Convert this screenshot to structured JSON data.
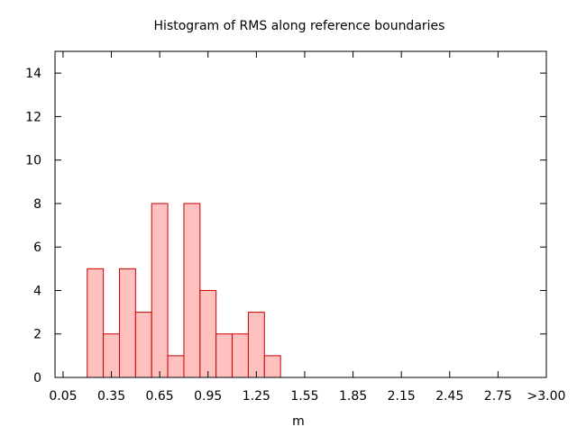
{
  "chart_data": {
    "type": "bar",
    "title": "Histogram of RMS along reference boundaries",
    "xlabel": "m",
    "ylabel": "",
    "xlim": [
      0.0,
      3.05
    ],
    "ylim": [
      0,
      15
    ],
    "bin_width": 0.1,
    "x_ticks": [
      "0.05",
      "0.35",
      "0.65",
      "0.95",
      "1.25",
      "1.55",
      "1.85",
      "2.15",
      "2.45",
      "2.75",
      ">3.00"
    ],
    "y_ticks": [
      "0",
      "2",
      "4",
      "6",
      "8",
      "10",
      "12",
      "14"
    ],
    "categories": [
      "0.25",
      "0.35",
      "0.45",
      "0.55",
      "0.65",
      "0.75",
      "0.85",
      "0.95",
      "1.05",
      "1.15",
      "1.25",
      "1.35"
    ],
    "x": [
      0.25,
      0.35,
      0.45,
      0.55,
      0.65,
      0.75,
      0.85,
      0.95,
      1.05,
      1.15,
      1.25,
      1.35
    ],
    "values": [
      5,
      2,
      5,
      3,
      8,
      1,
      8,
      4,
      2,
      2,
      3,
      1
    ],
    "grid": false,
    "colors": {
      "bar_fill": "#ffc0c0",
      "bar_stroke": "#cc0000",
      "axis": "#000000"
    }
  }
}
